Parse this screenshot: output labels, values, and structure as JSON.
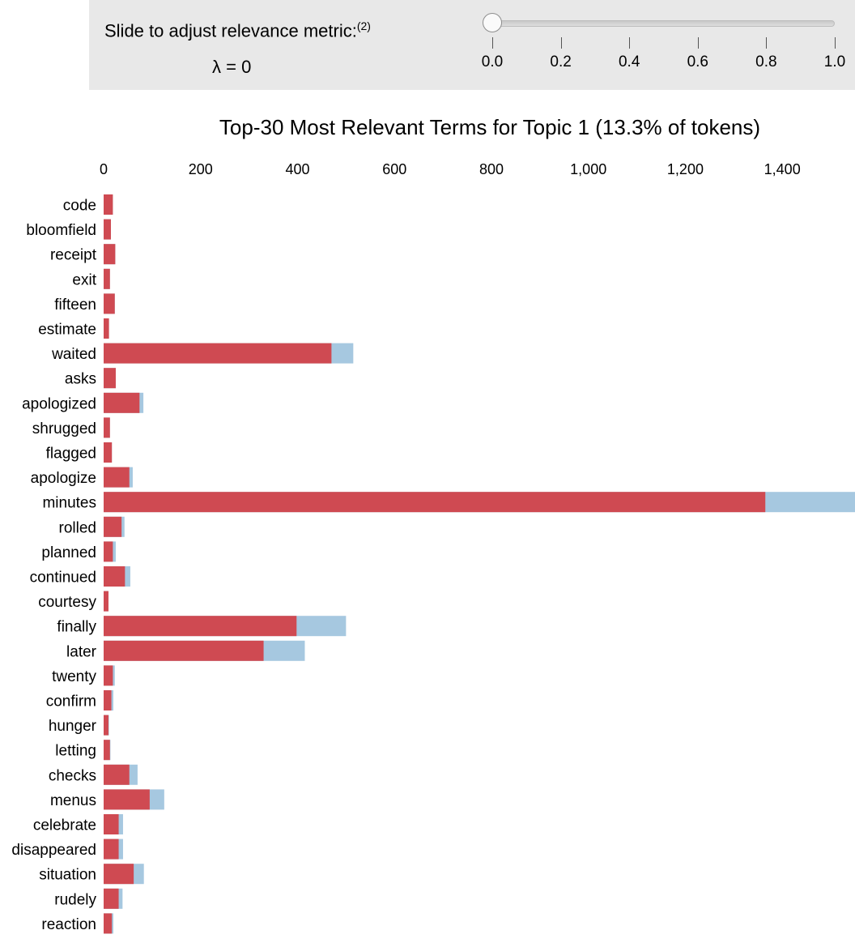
{
  "slider": {
    "label": "Slide to adjust relevance metric:",
    "footnote": "(2)",
    "readout": "λ = 0",
    "value": 0,
    "ticks": [
      "0.0",
      "0.2",
      "0.4",
      "0.6",
      "0.8",
      "1.0"
    ]
  },
  "chart_data": {
    "type": "bar",
    "orientation": "horizontal",
    "title": "Top-30 Most Relevant Terms for Topic 1 (13.3% of tokens)",
    "xlim": [
      0,
      1550
    ],
    "xticks": [
      0,
      200,
      400,
      600,
      800,
      1000,
      1200,
      1400
    ],
    "xtick_labels": [
      "0",
      "200",
      "400",
      "600",
      "800",
      "1,000",
      "1,200",
      "1,400"
    ],
    "categories": [
      "code",
      "bloomfield",
      "receipt",
      "exit",
      "fifteen",
      "estimate",
      "waited",
      "asks",
      "apologized",
      "shrugged",
      "flagged",
      "apologize",
      "minutes",
      "rolled",
      "planned",
      "continued",
      "courtesy",
      "finally",
      "later",
      "twenty",
      "confirm",
      "hunger",
      "letting",
      "checks",
      "menus",
      "celebrate",
      "disappeared",
      "situation",
      "rudely",
      "reaction"
    ],
    "series": [
      {
        "role": "overall",
        "color": "#a6c8e0",
        "values": [
          19,
          15,
          24,
          13,
          23,
          11,
          515,
          25,
          82,
          13,
          17,
          60,
          1550,
          43,
          25,
          55,
          10,
          500,
          415,
          23,
          20,
          11,
          14,
          70,
          125,
          40,
          40,
          83,
          39,
          20
        ]
      },
      {
        "role": "topic",
        "color": "#cf4a52",
        "values": [
          19,
          15,
          24,
          13,
          23,
          11,
          470,
          25,
          74,
          13,
          17,
          53,
          1365,
          37,
          19,
          44,
          10,
          398,
          330,
          19,
          16,
          10,
          13,
          53,
          95,
          31,
          31,
          62,
          31,
          17
        ]
      }
    ],
    "grid": false
  }
}
